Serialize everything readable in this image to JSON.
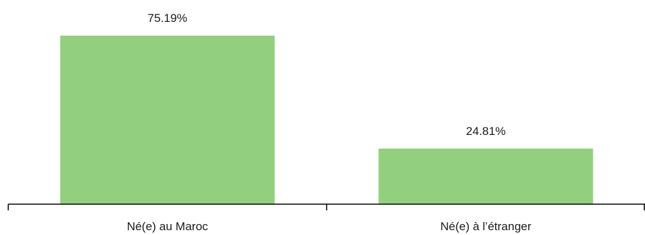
{
  "chart_data": {
    "type": "bar",
    "categories": [
      "Né(e) au Maroc",
      "Né(e) à l’étranger"
    ],
    "values": [
      75.19,
      24.81
    ],
    "data_labels": [
      "75.19%",
      "24.81%"
    ],
    "title": "",
    "xlabel": "",
    "ylabel": "",
    "unit": "%",
    "ylim": [
      0,
      80
    ],
    "grid": false,
    "legend": "none",
    "bar_color": "#92d07f",
    "axis_color": "#000000"
  }
}
